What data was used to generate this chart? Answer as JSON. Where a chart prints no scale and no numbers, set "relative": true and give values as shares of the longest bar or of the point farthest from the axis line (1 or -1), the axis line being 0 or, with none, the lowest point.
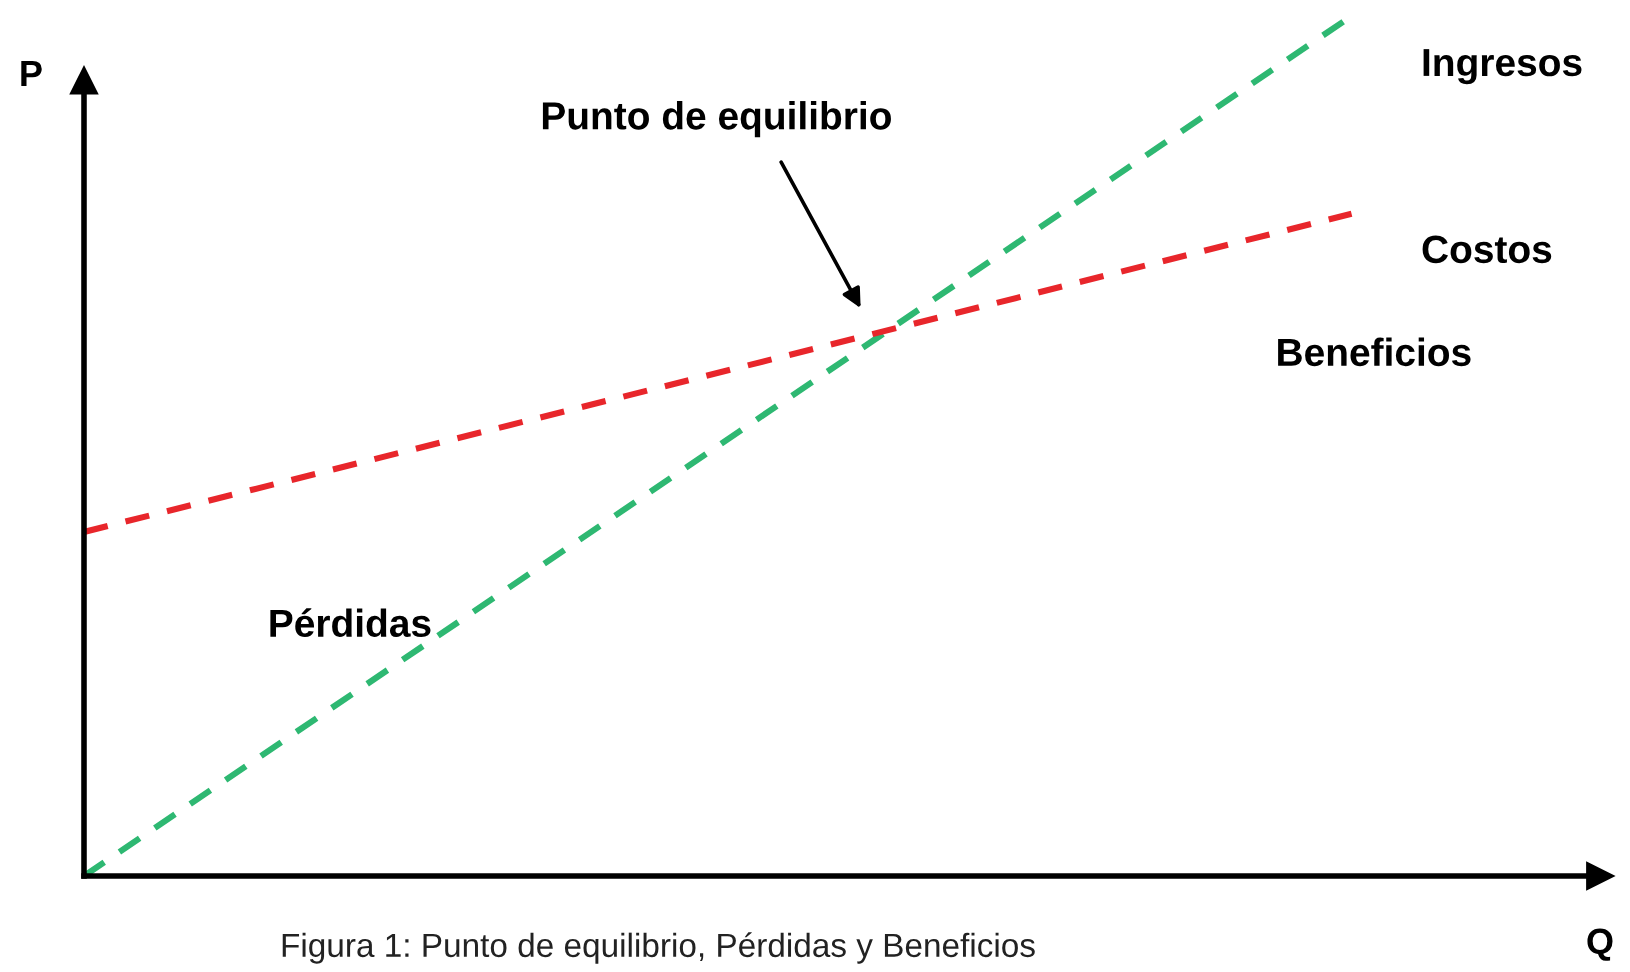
{
  "chart_data": {
    "type": "line",
    "relative": true,
    "xlabel": "Q",
    "ylabel": "P",
    "categories": [
      null,
      null
    ],
    "series": [
      {
        "name": "Ingresos",
        "color": "#2eb872",
        "values": [
          0,
          1
        ]
      },
      {
        "name": "Costos",
        "color": "#e8262b",
        "values": [
          0.4,
          0.77
        ]
      }
    ],
    "line_style": "dashed",
    "marker": "none",
    "legend": false,
    "tick_labels": false,
    "annotations": [
      "Punto de equilibrio",
      "Beneficios",
      "Pérdidas",
      "Figura 1: Punto de equilibrio, Pérdidas y Beneficios"
    ]
  }
}
